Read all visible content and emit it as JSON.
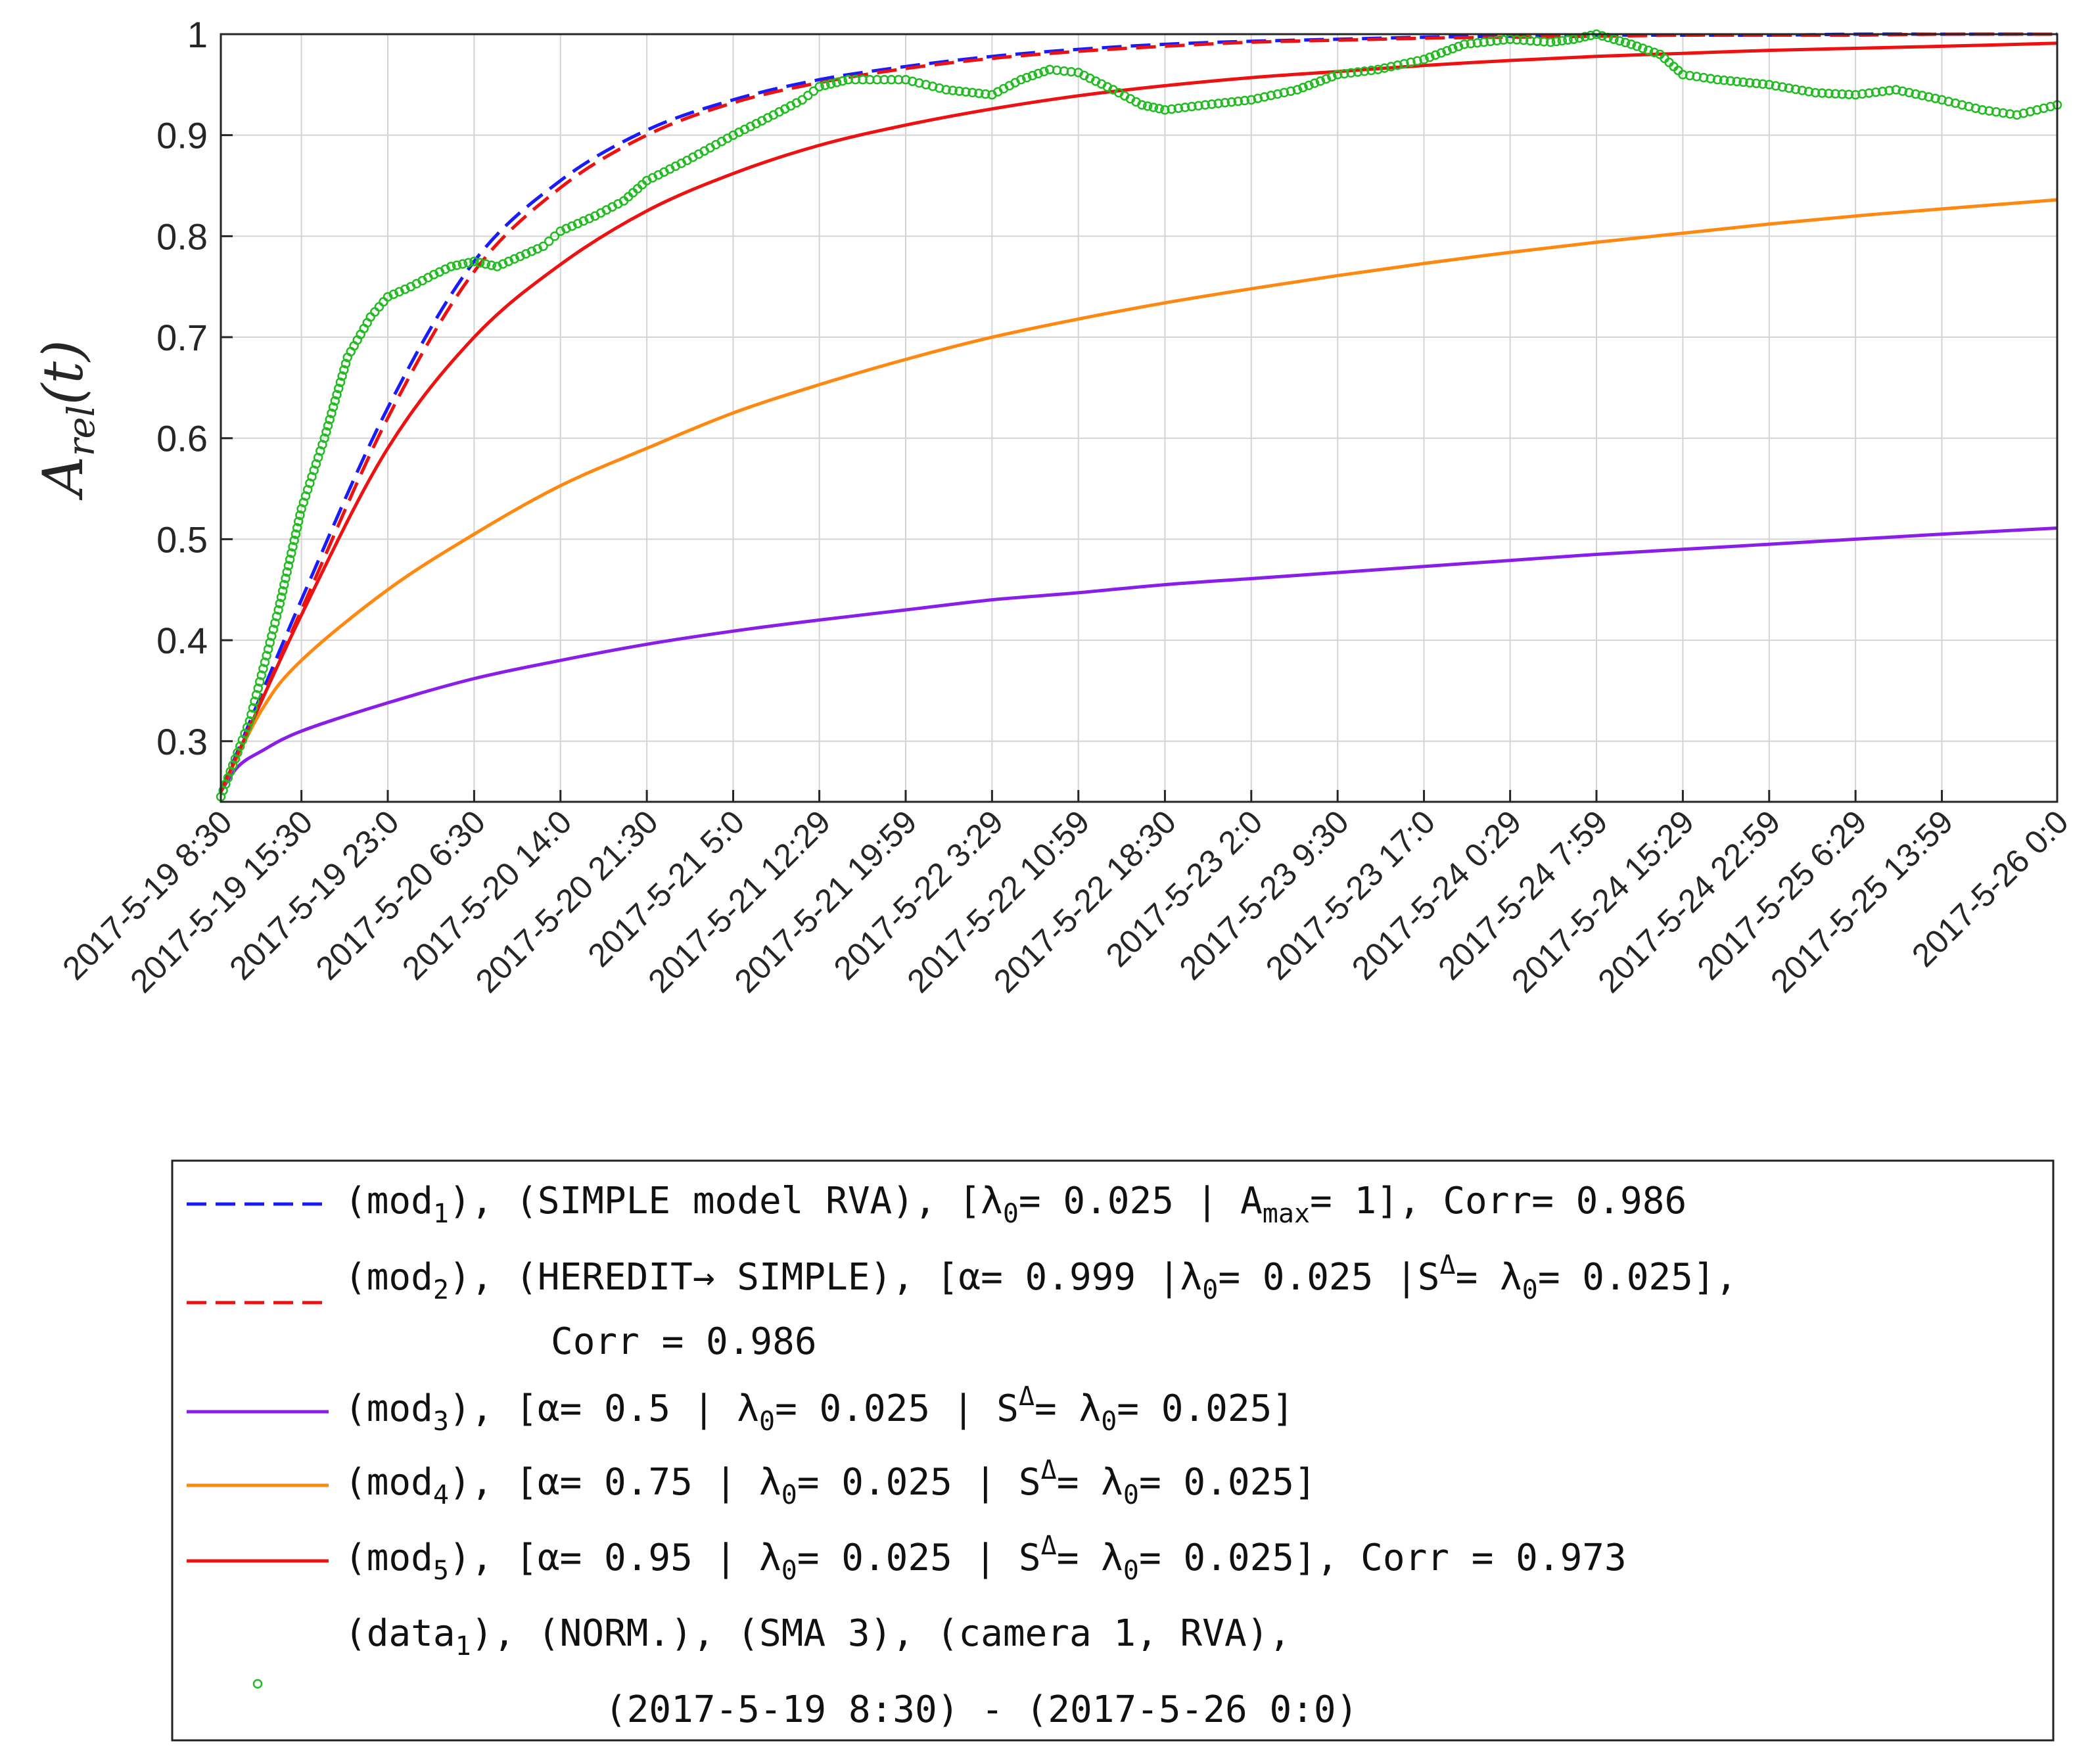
{
  "chart_data": {
    "type": "line",
    "title": "",
    "xlabel": "",
    "ylabel": {
      "main": "A",
      "sub": "rel",
      "arg": "(t)"
    },
    "ylim": [
      0.24,
      1.0
    ],
    "yticks": [
      "0.3",
      "0.4",
      "0.5",
      "0.6",
      "0.7",
      "0.8",
      "0.9",
      "1"
    ],
    "xlim": [
      "2017-05-19 08:30",
      "2017-05-26 00:00"
    ],
    "xticks": [
      "2017-5-19 8:30",
      "2017-5-19 15:30",
      "2017-5-19 23:0",
      "2017-5-20 6:30",
      "2017-5-20 14:0",
      "2017-5-20 21:30",
      "2017-5-21 5:0",
      "2017-5-21 12:29",
      "2017-5-21 19:59",
      "2017-5-22 3:29",
      "2017-5-22 10:59",
      "2017-5-22 18:30",
      "2017-5-23 2:0",
      "2017-5-23 9:30",
      "2017-5-23 17:0",
      "2017-5-24 0:29",
      "2017-5-24 7:59",
      "2017-5-24 15:29",
      "2017-5-24 22:59",
      "2017-5-25 6:29",
      "2017-5-25 13:59",
      "2017-5-26 0:0"
    ],
    "grid": true,
    "legend_position": "bottom",
    "series": [
      {
        "key": "mod1",
        "color": "#1a1aff",
        "style": "dashed",
        "x": [
          "2017-05-19 08:30",
          "2017-05-19 15:30",
          "2017-05-19 23:00",
          "2017-05-20 06:30",
          "2017-05-20 14:00",
          "2017-05-20 21:30",
          "2017-05-21 05:00",
          "2017-05-21 12:29",
          "2017-05-21 19:59",
          "2017-05-22 03:29",
          "2017-05-22 10:59",
          "2017-05-22 18:30",
          "2017-05-23 02:00",
          "2017-05-23 09:30",
          "2017-05-23 17:00",
          "2017-05-24 00:29",
          "2017-05-24 07:59",
          "2017-05-24 15:29",
          "2017-05-24 22:59",
          "2017-05-25 06:29",
          "2017-05-25 13:59",
          "2017-05-26 00:00"
        ],
        "y": [
          0.25,
          0.44,
          0.63,
          0.775,
          0.855,
          0.905,
          0.935,
          0.955,
          0.968,
          0.978,
          0.985,
          0.99,
          0.993,
          0.995,
          0.997,
          0.998,
          0.999,
          0.999,
          0.999,
          1.0,
          1.0,
          1.0
        ]
      },
      {
        "key": "mod2",
        "color": "#ee1111",
        "style": "dashed",
        "x": [
          "2017-05-19 08:30",
          "2017-05-19 15:30",
          "2017-05-19 23:00",
          "2017-05-20 06:30",
          "2017-05-20 14:00",
          "2017-05-20 21:30",
          "2017-05-21 05:00",
          "2017-05-21 12:29",
          "2017-05-21 19:59",
          "2017-05-22 03:29",
          "2017-05-22 10:59",
          "2017-05-22 18:30",
          "2017-05-23 02:00",
          "2017-05-23 09:30",
          "2017-05-23 17:00",
          "2017-05-24 00:29",
          "2017-05-24 07:59",
          "2017-05-24 15:29",
          "2017-05-24 22:59",
          "2017-05-25 06:29",
          "2017-05-25 13:59",
          "2017-05-26 00:00"
        ],
        "y": [
          0.25,
          0.43,
          0.62,
          0.765,
          0.848,
          0.9,
          0.932,
          0.952,
          0.966,
          0.976,
          0.983,
          0.988,
          0.992,
          0.994,
          0.996,
          0.997,
          0.998,
          0.999,
          0.999,
          0.999,
          1.0,
          1.0
        ]
      },
      {
        "key": "mod3",
        "color": "#8a1ee8",
        "style": "solid",
        "x": [
          "2017-05-19 08:30",
          "2017-05-19 10:00",
          "2017-05-19 12:00",
          "2017-05-19 15:30",
          "2017-05-19 23:00",
          "2017-05-20 06:30",
          "2017-05-20 14:00",
          "2017-05-20 21:30",
          "2017-05-21 05:00",
          "2017-05-21 12:29",
          "2017-05-21 19:59",
          "2017-05-22 03:29",
          "2017-05-22 10:59",
          "2017-05-22 18:30",
          "2017-05-23 02:00",
          "2017-05-23 09:30",
          "2017-05-23 17:00",
          "2017-05-24 00:29",
          "2017-05-24 07:59",
          "2017-05-24 15:29",
          "2017-05-24 22:59",
          "2017-05-25 06:29",
          "2017-05-25 13:59",
          "2017-05-26 00:00"
        ],
        "y": [
          0.25,
          0.275,
          0.29,
          0.31,
          0.338,
          0.362,
          0.38,
          0.396,
          0.409,
          0.42,
          0.43,
          0.44,
          0.447,
          0.455,
          0.461,
          0.467,
          0.473,
          0.479,
          0.485,
          0.49,
          0.495,
          0.5,
          0.505,
          0.511
        ]
      },
      {
        "key": "mod4",
        "color": "#ff8811",
        "style": "solid",
        "x": [
          "2017-05-19 08:30",
          "2017-05-19 12:00",
          "2017-05-19 15:30",
          "2017-05-19 23:00",
          "2017-05-20 06:30",
          "2017-05-20 14:00",
          "2017-05-20 21:30",
          "2017-05-21 05:00",
          "2017-05-21 12:29",
          "2017-05-21 19:59",
          "2017-05-22 03:29",
          "2017-05-22 10:59",
          "2017-05-22 18:30",
          "2017-05-23 02:00",
          "2017-05-23 09:30",
          "2017-05-23 17:00",
          "2017-05-24 00:29",
          "2017-05-24 07:59",
          "2017-05-24 15:29",
          "2017-05-24 22:59",
          "2017-05-25 06:29",
          "2017-05-25 13:59",
          "2017-05-26 00:00"
        ],
        "y": [
          0.25,
          0.33,
          0.38,
          0.45,
          0.505,
          0.553,
          0.59,
          0.625,
          0.653,
          0.678,
          0.7,
          0.718,
          0.734,
          0.748,
          0.761,
          0.773,
          0.784,
          0.794,
          0.803,
          0.812,
          0.82,
          0.827,
          0.836
        ]
      },
      {
        "key": "mod5",
        "color": "#ee1111",
        "style": "solid",
        "x": [
          "2017-05-19 08:30",
          "2017-05-19 15:30",
          "2017-05-19 23:00",
          "2017-05-20 06:30",
          "2017-05-20 14:00",
          "2017-05-20 21:30",
          "2017-05-21 05:00",
          "2017-05-21 12:29",
          "2017-05-21 19:59",
          "2017-05-22 03:29",
          "2017-05-22 10:59",
          "2017-05-22 18:30",
          "2017-05-23 02:00",
          "2017-05-23 09:30",
          "2017-05-23 17:00",
          "2017-05-24 00:29",
          "2017-05-24 07:59",
          "2017-05-24 15:29",
          "2017-05-24 22:59",
          "2017-05-25 06:29",
          "2017-05-25 13:59",
          "2017-05-26 00:00"
        ],
        "y": [
          0.25,
          0.425,
          0.59,
          0.7,
          0.772,
          0.825,
          0.862,
          0.89,
          0.91,
          0.926,
          0.939,
          0.949,
          0.957,
          0.963,
          0.969,
          0.974,
          0.978,
          0.981,
          0.984,
          0.986,
          0.988,
          0.991
        ]
      },
      {
        "key": "data1",
        "color": "#22bb22",
        "style": "markers",
        "x": [
          "2017-05-19 08:30",
          "2017-05-19 11:00",
          "2017-05-19 13:30",
          "2017-05-19 15:30",
          "2017-05-19 17:30",
          "2017-05-19 19:30",
          "2017-05-19 21:30",
          "2017-05-19 23:00",
          "2017-05-20 01:00",
          "2017-05-20 03:00",
          "2017-05-20 04:30",
          "2017-05-20 06:30",
          "2017-05-20 08:30",
          "2017-05-20 10:30",
          "2017-05-20 12:30",
          "2017-05-20 14:00",
          "2017-05-20 17:00",
          "2017-05-20 19:30",
          "2017-05-20 21:30",
          "2017-05-21 01:00",
          "2017-05-21 05:00",
          "2017-05-21 08:30",
          "2017-05-21 11:00",
          "2017-05-21 12:29",
          "2017-05-21 15:00",
          "2017-05-21 17:30",
          "2017-05-21 19:59",
          "2017-05-21 23:30",
          "2017-05-22 03:29",
          "2017-05-22 06:00",
          "2017-05-22 08:30",
          "2017-05-22 10:59",
          "2017-05-22 14:00",
          "2017-05-22 16:30",
          "2017-05-22 18:30",
          "2017-05-22 22:00",
          "2017-05-23 02:00",
          "2017-05-23 06:00",
          "2017-05-23 09:30",
          "2017-05-23 13:00",
          "2017-05-23 17:00",
          "2017-05-23 20:30",
          "2017-05-24 00:29",
          "2017-05-24 04:00",
          "2017-05-24 06:00",
          "2017-05-24 07:59",
          "2017-05-24 11:00",
          "2017-05-24 13:30",
          "2017-05-24 15:29",
          "2017-05-24 18:30",
          "2017-05-24 22:59",
          "2017-05-25 03:00",
          "2017-05-25 06:29",
          "2017-05-25 10:00",
          "2017-05-25 13:59",
          "2017-05-25 17:30",
          "2017-05-25 20:30",
          "2017-05-26 00:00"
        ],
        "y": [
          0.245,
          0.32,
          0.43,
          0.53,
          0.6,
          0.68,
          0.72,
          0.74,
          0.75,
          0.762,
          0.77,
          0.775,
          0.77,
          0.78,
          0.79,
          0.805,
          0.82,
          0.835,
          0.855,
          0.875,
          0.9,
          0.92,
          0.935,
          0.948,
          0.955,
          0.955,
          0.955,
          0.945,
          0.94,
          0.955,
          0.965,
          0.962,
          0.945,
          0.93,
          0.925,
          0.93,
          0.935,
          0.945,
          0.96,
          0.965,
          0.975,
          0.99,
          0.995,
          0.992,
          0.995,
          1.0,
          0.99,
          0.98,
          0.96,
          0.955,
          0.95,
          0.942,
          0.94,
          0.945,
          0.935,
          0.925,
          0.92,
          0.93
        ]
      }
    ]
  },
  "legend": [
    {
      "key": "mod1",
      "line": "(mod<1>), (SIMPLE model RVA), [λ<0>= 0.025 | A<max>= 1],  Corr= 0.986"
    },
    {
      "key": "mod2",
      "line": "(mod<2>), (HEREDIT→ SIMPLE), [α= 0.999 |λ<0>= 0.025 |S^Δ= λ<0>= 0.025],",
      "line2": "Corr = 0.986"
    },
    {
      "key": "mod3",
      "line": "(mod<3>),  [α= 0.5  | λ<0>= 0.025 | S^Δ= λ<0>= 0.025]"
    },
    {
      "key": "mod4",
      "line": "(mod<4>),  [α= 0.75 | λ<0>= 0.025 | S^Δ= λ<0>= 0.025]"
    },
    {
      "key": "mod5",
      "line": "(mod<5>),  [α= 0.95 | λ<0>= 0.025 | S^Δ= λ<0>= 0.025],  Corr = 0.973"
    },
    {
      "key": "data1",
      "line": "(data<1>),  (NORM.), (SMA 3), (camera 1, RVA),",
      "line2": "(2017-5-19 8:30) - (2017-5-26 0:0)"
    }
  ]
}
